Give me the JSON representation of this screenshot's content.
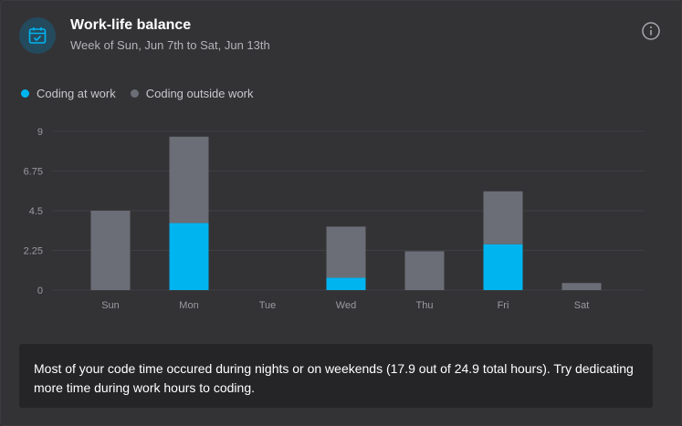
{
  "card": {
    "title": "Work-life balance",
    "subtitle": "Week of Sun, Jun 7th to Sat, Jun 13th",
    "header_icon": "calendar-check-icon",
    "info_icon": "info-icon"
  },
  "colors": {
    "work": "#00b4f0",
    "outside": "#6b6e76",
    "accent_bg": "#244a5e"
  },
  "legend": {
    "work_label": "Coding at work",
    "outside_label": "Coding outside work"
  },
  "chart_data": {
    "type": "bar",
    "stacked": true,
    "title": "",
    "xlabel": "",
    "ylabel": "",
    "ylim": [
      0,
      9
    ],
    "yticks": [
      "0",
      "2.25",
      "4.5",
      "6.75",
      "9"
    ],
    "categories": [
      "Sun",
      "Mon",
      "Tue",
      "Wed",
      "Thu",
      "Fri",
      "Sat"
    ],
    "series": [
      {
        "name": "Coding at work",
        "values": [
          0,
          3.8,
          0,
          0.7,
          0,
          2.6,
          0
        ]
      },
      {
        "name": "Coding outside work",
        "values": [
          4.5,
          4.9,
          0,
          2.9,
          2.2,
          3.0,
          0.4
        ]
      }
    ],
    "grid": true,
    "legend": "top-left"
  },
  "footer": {
    "message": "Most of your code time occured during nights or on weekends (17.9 out of 24.9 total hours). Try dedicating more time during work hours to coding."
  }
}
